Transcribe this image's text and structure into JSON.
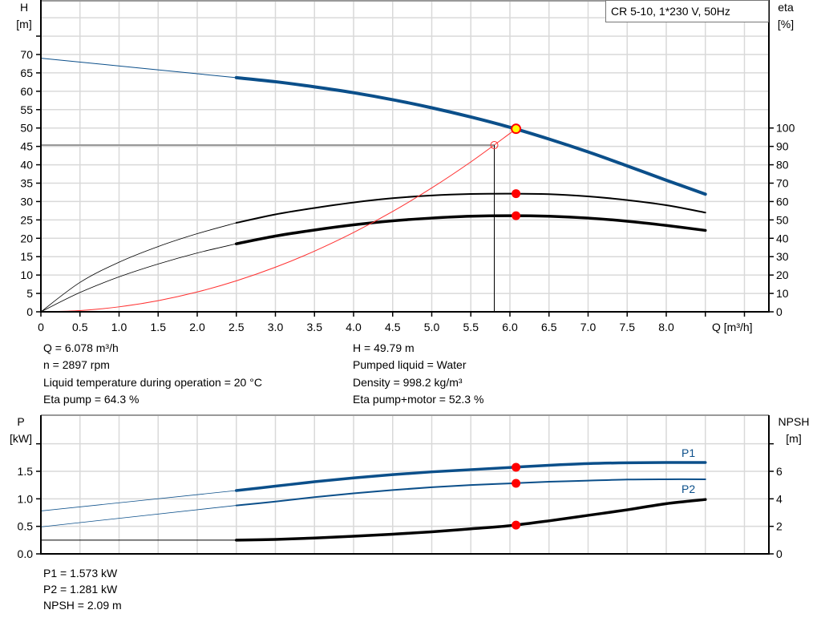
{
  "title_box": "CR 5-10, 1*230 V, 50Hz",
  "colors": {
    "head": "#0b4f8a",
    "eta": "#000000",
    "system": "#ff3030",
    "power": "#0b4f8a",
    "npsh": "#000000",
    "duty_point": "#ff0000",
    "duty_point_head": "#ffff00",
    "grid": "#d9d9d9"
  },
  "info": {
    "left": [
      "Q = 6.078 m³/h",
      "n = 2897 rpm",
      "Liquid temperature during operation = 20 °C",
      "Eta pump = 64.3 %"
    ],
    "right": [
      "H = 49.79 m",
      "Pumped liquid = Water",
      "Density = 998.2 kg/m³",
      "Eta pump+motor = 52.3 %"
    ],
    "bottom": [
      "P1 = 1.573 kW",
      "P2 = 1.281 kW",
      "NPSH = 2.09 m"
    ]
  },
  "chart_data": [
    {
      "type": "line",
      "xlabel": "Q [m³/h]",
      "ylabel_left": [
        "H",
        "[m]"
      ],
      "ylabel_right": [
        "eta",
        "[%]"
      ],
      "x_ticks": [
        "0",
        "0.5",
        "1.0",
        "1.5",
        "2.0",
        "2.5",
        "3.0",
        "3.5",
        "4.0",
        "4.5",
        "5.0",
        "5.5",
        "6.0",
        "6.5",
        "7.0",
        "7.5",
        "8.0"
      ],
      "y_left_ticks": [
        "0",
        "5",
        "10",
        "15",
        "20",
        "25",
        "30",
        "35",
        "40",
        "45",
        "50",
        "55",
        "60",
        "65",
        "70"
      ],
      "y_right_ticks": [
        "0",
        "10",
        "20",
        "30",
        "40",
        "50",
        "60",
        "70",
        "80",
        "90",
        "100"
      ],
      "grid": true,
      "xlim": [
        0,
        9.3
      ],
      "ylim_left": [
        0,
        85
      ],
      "ylim_right": [
        0,
        170
      ],
      "series": [
        {
          "key": "head",
          "axis": "left",
          "x": [
            0,
            2.5,
            3,
            3.5,
            4,
            4.5,
            5,
            5.5,
            6,
            6.5,
            7,
            7.5,
            8,
            8.5
          ],
          "y": [
            69,
            63.7,
            62.6,
            61.2,
            59.6,
            57.7,
            55.5,
            53,
            50.2,
            47,
            43.5,
            39.7,
            35.8,
            32
          ]
        },
        {
          "key": "eta_pump",
          "axis": "right",
          "x": [
            0,
            0.5,
            1,
            1.5,
            2,
            2.5,
            3,
            3.5,
            4,
            4.5,
            5,
            5.5,
            6,
            6.5,
            7,
            7.5,
            8,
            8.5
          ],
          "y": [
            0,
            16,
            27,
            35.5,
            42.5,
            48.4,
            53,
            56.5,
            59.5,
            61.8,
            63.3,
            64.1,
            64.3,
            64,
            62.8,
            60.8,
            58,
            54
          ]
        },
        {
          "key": "eta_pump_motor",
          "axis": "right",
          "x": [
            0,
            0.5,
            1,
            1.5,
            2,
            2.5,
            3,
            3.5,
            4,
            4.5,
            5,
            5.5,
            6,
            6.5,
            7,
            7.5,
            8,
            8.5
          ],
          "y": [
            0,
            10.5,
            19,
            26,
            32,
            37,
            41.2,
            44.5,
            47.3,
            49.5,
            51,
            52,
            52.3,
            52,
            51,
            49.3,
            47,
            44.3
          ]
        },
        {
          "key": "system",
          "axis": "left",
          "x": [
            0,
            0.5,
            1,
            1.5,
            2,
            2.5,
            3,
            3.5,
            4,
            4.5,
            5,
            5.5,
            6,
            6.078
          ],
          "y": [
            0,
            0.34,
            1.35,
            3.03,
            5.39,
            8.43,
            12.13,
            16.51,
            21.57,
            27.3,
            33.7,
            40.78,
            48.53,
            49.79
          ]
        }
      ],
      "duty_point": {
        "Q": 6.078,
        "H": 49.79,
        "eta_pump": 64.3,
        "eta_pump_motor": 52.3
      },
      "reference_point": {
        "Q": 5.8,
        "H": 45.35
      }
    },
    {
      "type": "line",
      "ylabel_left": [
        "P",
        "[kW]"
      ],
      "ylabel_right": [
        "NPSH",
        "[m]"
      ],
      "y_left_ticks": [
        "0.0",
        "0.5",
        "1.0",
        "1.5"
      ],
      "y_right_ticks": [
        "0",
        "2",
        "4",
        "6"
      ],
      "grid": true,
      "xlim": [
        0,
        9.3
      ],
      "ylim_left": [
        0,
        2.5
      ],
      "ylim_right": [
        0,
        10
      ],
      "series": [
        {
          "key": "p1",
          "name": "P1",
          "axis": "left",
          "x": [
            0,
            2.5,
            3,
            3.5,
            4,
            4.5,
            5,
            5.5,
            6,
            6.5,
            7,
            7.5,
            8,
            8.5
          ],
          "y": [
            0.78,
            1.15,
            1.23,
            1.31,
            1.38,
            1.44,
            1.49,
            1.53,
            1.57,
            1.61,
            1.64,
            1.655,
            1.66,
            1.66
          ]
        },
        {
          "key": "p2",
          "name": "P2",
          "axis": "left",
          "x": [
            0,
            2.5,
            3,
            3.5,
            4,
            4.5,
            5,
            5.5,
            6,
            6.5,
            7,
            7.5,
            8,
            8.5
          ],
          "y": [
            0.49,
            0.88,
            0.95,
            1.03,
            1.1,
            1.16,
            1.21,
            1.25,
            1.28,
            1.31,
            1.33,
            1.35,
            1.355,
            1.355
          ]
        },
        {
          "key": "npsh",
          "axis": "right",
          "x": [
            0,
            2.5,
            3,
            3.5,
            4,
            4.5,
            5,
            5.5,
            6,
            6.5,
            7,
            7.5,
            8,
            8.5
          ],
          "y": [
            1.0,
            1.0,
            1.05,
            1.15,
            1.28,
            1.43,
            1.6,
            1.82,
            2.05,
            2.4,
            2.8,
            3.2,
            3.65,
            3.95
          ]
        }
      ],
      "duty_point": {
        "Q": 6.078,
        "P1": 1.573,
        "P2": 1.281,
        "NPSH": 2.09
      }
    }
  ]
}
